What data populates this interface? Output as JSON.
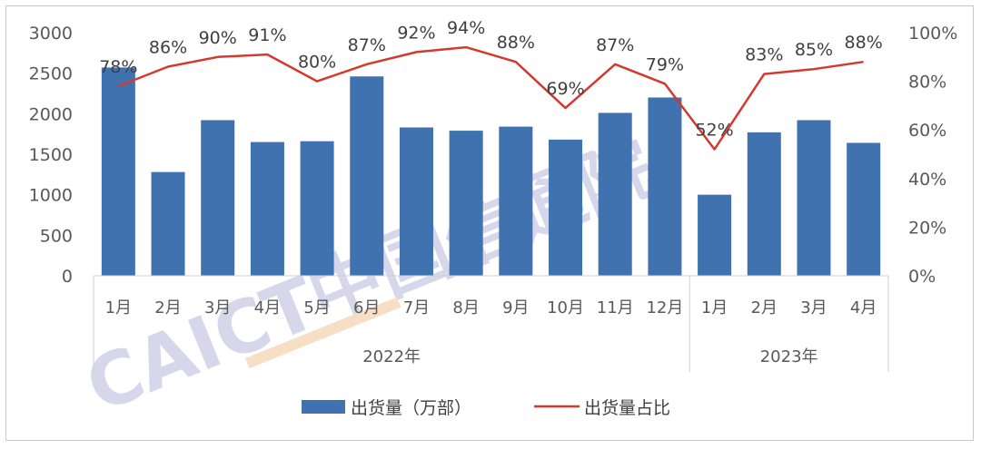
{
  "chart_data": {
    "type": "bar+line",
    "categories": [
      "1月",
      "2月",
      "3月",
      "4月",
      "5月",
      "6月",
      "7月",
      "8月",
      "9月",
      "10月",
      "11月",
      "12月",
      "1月",
      "2月",
      "3月",
      "4月"
    ],
    "groups": [
      {
        "label": "2022年",
        "span": 12
      },
      {
        "label": "2023年",
        "span": 4
      }
    ],
    "series": [
      {
        "name": "出货量（万部）",
        "type": "bar",
        "axis": "left",
        "color": "#3f72af",
        "values": [
          2570,
          1280,
          1920,
          1650,
          1660,
          2460,
          1830,
          1790,
          1840,
          1680,
          2010,
          2200,
          1000,
          1770,
          1920,
          1640
        ]
      },
      {
        "name": "出货量占比",
        "type": "line",
        "axis": "right",
        "color": "#d33a2f",
        "values": [
          78,
          86,
          90,
          91,
          80,
          87,
          92,
          94,
          88,
          69,
          87,
          79,
          52,
          83,
          85,
          88
        ],
        "labels": [
          "78%",
          "86%",
          "90%",
          "91%",
          "80%",
          "87%",
          "92%",
          "94%",
          "88%",
          "69%",
          "87%",
          "79%",
          "52%",
          "83%",
          "85%",
          "88%"
        ]
      }
    ],
    "y_left": {
      "min": 0,
      "max": 3000,
      "ticks": [
        "0",
        "500",
        "1000",
        "1500",
        "2000",
        "2500",
        "3000"
      ]
    },
    "y_right": {
      "min": 0,
      "max": 100,
      "ticks": [
        "0%",
        "20%",
        "40%",
        "60%",
        "80%",
        "100%"
      ]
    },
    "legend_position": "bottom",
    "grid": false,
    "watermark": "CAICT中国信通院"
  }
}
